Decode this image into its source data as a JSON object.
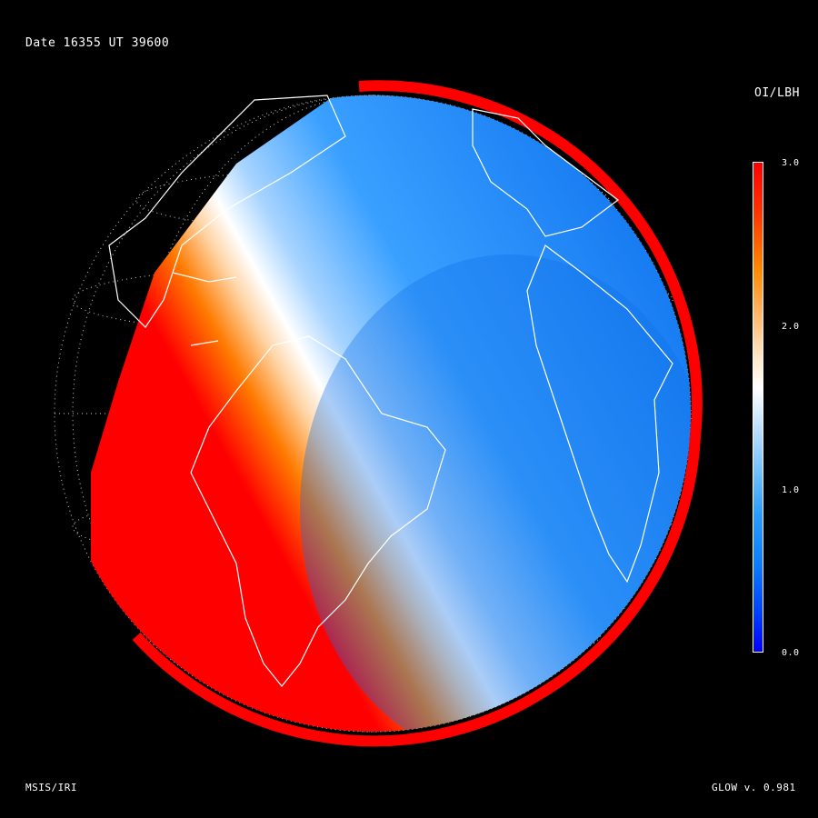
{
  "header": {
    "date_text": "Date 16355  UT 39600"
  },
  "colorbar": {
    "title": "OI/LBH",
    "ticks": [
      "3.0",
      "2.0",
      "1.0",
      "0.0"
    ],
    "range": [
      0.0,
      3.0
    ]
  },
  "footer": {
    "left_text": "MSIS/IRI",
    "right_text": "GLOW v. 0.981"
  },
  "colors": {
    "background": "#000000",
    "high": "#ff0000",
    "mid": "#ffffff",
    "low": "#0000ff",
    "disk_day": "#1a8fff",
    "outline": "#ffffff"
  }
}
